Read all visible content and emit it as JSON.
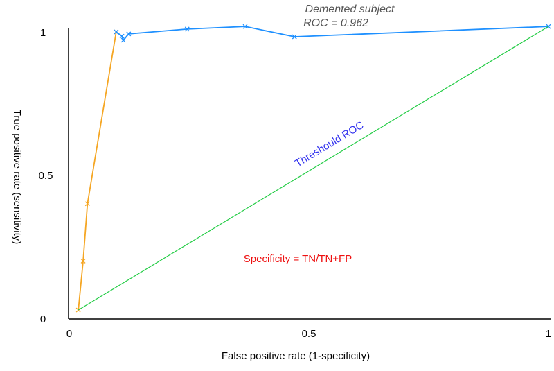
{
  "chart_data": {
    "type": "line",
    "title": "Demented subject",
    "subtitle": "ROC = 0.962",
    "xlabel": "False positive rate (1-specificity)",
    "ylabel": "True positive rate (sensitivity)",
    "xlim": [
      0,
      1
    ],
    "ylim": [
      0,
      1
    ],
    "xticks": [
      "0",
      "0.5",
      "1"
    ],
    "yticks": [
      "0",
      "0.5",
      "1"
    ],
    "grid": false,
    "annotations": {
      "threshold": "Threshould ROC",
      "specificity": "Specificity = TN/TN+FP"
    },
    "series": [
      {
        "name": "orange",
        "color": "#f5a623",
        "points": [
          [
            0.019,
            0.029
          ],
          [
            0.029,
            0.2
          ],
          [
            0.038,
            0.4
          ],
          [
            0.098,
            1.0
          ]
        ]
      },
      {
        "name": "blue",
        "color": "#1e90ff",
        "points": [
          [
            0.098,
            1.0
          ],
          [
            0.11,
            0.985
          ],
          [
            0.113,
            0.971
          ],
          [
            0.124,
            0.993
          ],
          [
            0.246,
            1.01
          ],
          [
            0.367,
            1.019
          ],
          [
            0.47,
            0.983
          ],
          [
            1.0,
            1.019
          ]
        ]
      },
      {
        "name": "threshold",
        "color": "#22cc44",
        "points": [
          [
            0.019,
            0.029
          ],
          [
            1.0,
            1.019
          ]
        ]
      }
    ]
  }
}
